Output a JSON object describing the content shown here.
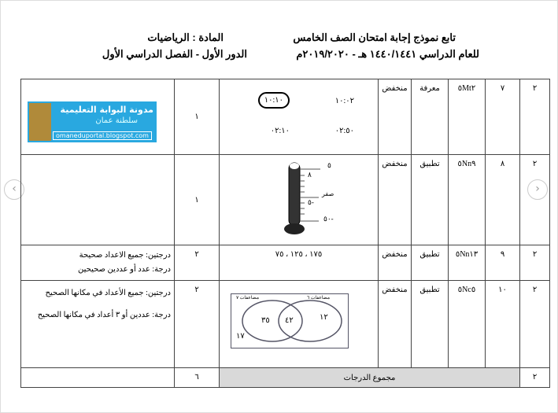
{
  "header": {
    "title": "تابع نموذج إجابة امتحان الصف الخامس",
    "subject": "المادة : الرياضيات",
    "year": "للعام الدراسي ١٤٤٠/١٤٤١ هـ  -  ٢٠١٩/٢٠٢٠م",
    "term": "الدور الأول - الفصل الدراسي الأول"
  },
  "rows": [
    {
      "c1": "٢",
      "num": "٧",
      "code": "٥Mt٢",
      "level": "معرفة",
      "diff": "منخفض",
      "marks": "١",
      "answers": [
        "١٠:٠٢",
        "١٠:١٠",
        "٠٢:٥٠",
        "٠٢:١٠"
      ],
      "notes": []
    },
    {
      "c1": "٢",
      "num": "٨",
      "code": "٥Nn٩",
      "level": "تطبيق",
      "diff": "منخفض",
      "marks": "١",
      "thermo": [
        "٥",
        "٨",
        "صفر",
        "-٥",
        "-٥٠"
      ],
      "notes": []
    },
    {
      "c1": "٢",
      "num": "٩",
      "code": "٥Nn١٣",
      "level": "تطبيق",
      "diff": "منخفض",
      "marks": "٢",
      "answer": "١٧٥ ، ١٢٥ ، ٧٥",
      "notes": [
        "درجتين: جميع الاعداد صحيحة",
        "درجة: عدد أو عددين صحيحين"
      ]
    },
    {
      "c1": "٢",
      "num": "١٠",
      "code": "٥Nc٥",
      "level": "تطبيق",
      "diff": "منخفض",
      "marks": "٢",
      "venn": {
        "left_label": "مضاعفات ٧",
        "right_label": "مضاعفات ٦",
        "left": "٣٥",
        "middle": "٤٢",
        "right": "١٢",
        "outside": "١٧"
      },
      "notes": [
        "درجتين: جميع الأعداد في مكانها الصحيح",
        "درجة: عددين أو ٣ أعداد في مكانها الصحيح"
      ]
    }
  ],
  "total": {
    "c1": "٢",
    "label": "مجموع الدرجات",
    "marks": "٦"
  },
  "logo": {
    "line1": "مدونة البوابة التعليمية",
    "line2": "سلطنة عمان",
    "url": "omaneduportal.blogspot.com"
  },
  "nav": {
    "prev": "‹",
    "next": "›"
  }
}
